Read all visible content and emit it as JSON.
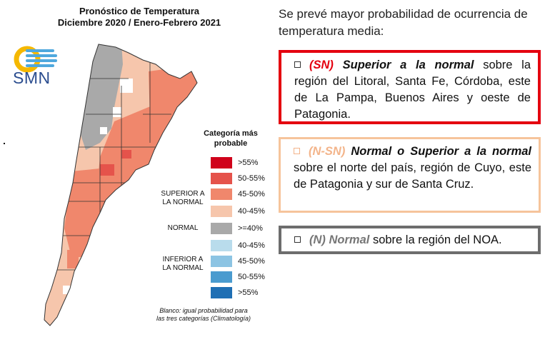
{
  "map": {
    "title_line1": "Pronóstico de Temperatura",
    "title_line2": "Diciembre 2020 / Enero-Febrero 2021",
    "logo_text": "SMN"
  },
  "legend": {
    "title_line1": "Categoría más",
    "title_line2": "probable",
    "superior_label_line1": "SUPERIOR A",
    "superior_label_line2": "LA NORMAL",
    "normal_label": "NORMAL",
    "inferior_label_line1": "INFERIOR A",
    "inferior_label_line2": "LA NORMAL",
    "items": [
      {
        "value": ">55%",
        "color": "#d0021b"
      },
      {
        "value": "50-55%",
        "color": "#e5534b"
      },
      {
        "value": "45-50%",
        "color": "#f0876c"
      },
      {
        "value": "40-45%",
        "color": "#f6c6ac"
      },
      {
        "value": ">=40%",
        "color": "#a9a9a9"
      },
      {
        "value": "40-45%",
        "color": "#b9dcec"
      },
      {
        "value": "45-50%",
        "color": "#8cc4e3"
      },
      {
        "value": "50-55%",
        "color": "#4a9bcf"
      },
      {
        "value": ">55%",
        "color": "#1f6fb4"
      }
    ],
    "footnote_line1": "Blanco: igual probabilidad para",
    "footnote_line2": "las tres categorías (Climatología)"
  },
  "text": {
    "intro": "Se prevé mayor probabilidad de ocurrencia de temperatura media:",
    "box1": {
      "code": "(SN)",
      "category": "Superior a la normal",
      "rest": "sobre la región del Litoral, Santa Fe, Córdoba, este de La Pampa, Buenos Aires y oeste de Patagonia."
    },
    "box2": {
      "code": "(N-SN)",
      "category": "Normal o Superior a la normal",
      "rest": "sobre el norte del país, región de Cuyo, este de Patagonia y sur de Santa Cruz."
    },
    "box3": {
      "code": "(N)",
      "category": "Normal",
      "rest": "sobre la región del NOA."
    }
  }
}
